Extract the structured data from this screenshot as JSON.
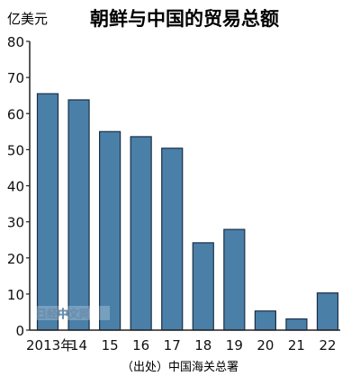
{
  "chart_data": {
    "type": "bar",
    "title": "朝鲜与中国的贸易总额",
    "unit_label": "亿美元",
    "source": "（出处）中国海关总署",
    "watermark": "日经中文网",
    "categories": [
      "2013年",
      "14",
      "15",
      "16",
      "17",
      "18",
      "19",
      "20",
      "21",
      "22"
    ],
    "values": [
      65.5,
      63.8,
      55.0,
      53.6,
      50.4,
      24.2,
      27.9,
      5.3,
      3.1,
      10.3
    ],
    "yticks": [
      0,
      10,
      20,
      30,
      40,
      50,
      60,
      70,
      80
    ],
    "ylim": [
      0,
      80
    ],
    "grid": false,
    "legend": "none",
    "colors": {
      "bar_fill": "#4a7fa8",
      "bar_stroke": "#1a2f45",
      "axis": "#222222",
      "text": "#111111"
    }
  }
}
